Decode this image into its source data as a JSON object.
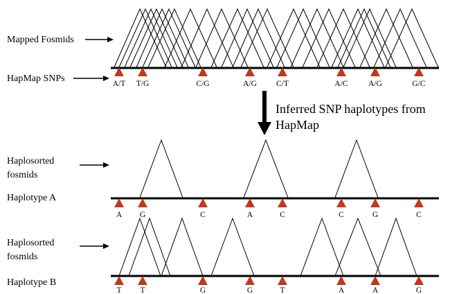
{
  "labels": {
    "mapped_fosmids": "Mapped Fosmids",
    "hapmap_snps": "HapMap SNPs",
    "inferred_line1": "Inferred SNP haplotypes from",
    "inferred_line2": "HapMap",
    "haplosorted_a_line1": "Haplosorted",
    "haplosorted_a_line2": "fosmids",
    "haplotype_a": "Haplotype A",
    "haplosorted_b_line1": "Haplosorted",
    "haplosorted_b_line2": "fosmids",
    "haplotype_b": "Haplotype B"
  },
  "snp_alleles": [
    "A/T",
    "T/G",
    "C/G",
    "A/G",
    "C/T",
    "A/C",
    "A/G",
    "G/C"
  ],
  "haplotype_a_alleles": [
    "A",
    "G",
    "C",
    "A",
    "C",
    "C",
    "G",
    "C"
  ],
  "haplotype_b_alleles": [
    "T",
    "T",
    "G",
    "G",
    "T",
    "A",
    "A",
    "G"
  ],
  "colors": {
    "snp_marker": "#c0391b",
    "line": "#000000"
  }
}
